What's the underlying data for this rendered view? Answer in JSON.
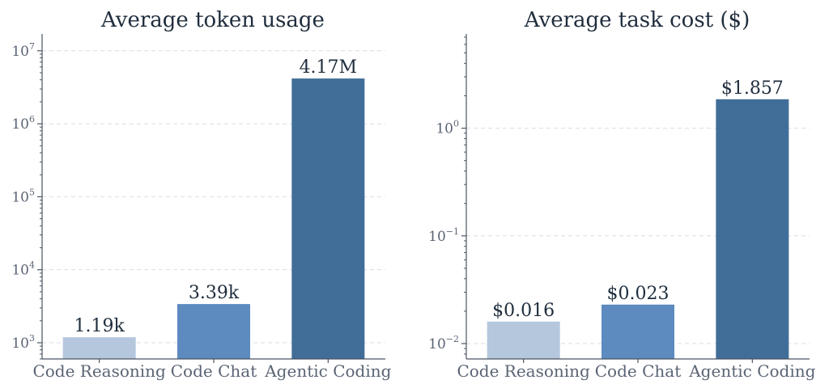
{
  "chart_data": [
    {
      "type": "bar",
      "title": "Average token usage",
      "xlabel": "",
      "ylabel": "",
      "yscale": "log",
      "ylim": [
        600,
        17000000
      ],
      "grid": true,
      "categories": [
        "Code Reasoning",
        "Code Chat",
        "Agentic Coding"
      ],
      "values": [
        1190,
        3390,
        4170000
      ],
      "value_labels": [
        "1.19k",
        "3.39k",
        "4.17M"
      ],
      "colors": [
        "#b4c7dc",
        "#5d8bbf",
        "#406e98"
      ],
      "yticks": [
        {
          "value": 1000,
          "base": "10",
          "exp": "3"
        },
        {
          "value": 10000,
          "base": "10",
          "exp": "4"
        },
        {
          "value": 100000,
          "base": "10",
          "exp": "5"
        },
        {
          "value": 1000000,
          "base": "10",
          "exp": "6"
        },
        {
          "value": 10000000,
          "base": "10",
          "exp": "7"
        }
      ]
    },
    {
      "type": "bar",
      "title": "Average task cost ($)",
      "xlabel": "",
      "ylabel": "",
      "yscale": "log",
      "ylim": [
        0.0072,
        7.5
      ],
      "grid": true,
      "categories": [
        "Code Reasoning",
        "Code Chat",
        "Agentic Coding"
      ],
      "values": [
        0.016,
        0.023,
        1.857
      ],
      "value_labels": [
        "$0.016",
        "$0.023",
        "$1.857"
      ],
      "colors": [
        "#b4c7dc",
        "#5d8bbf",
        "#406e98"
      ],
      "yticks": [
        {
          "value": 0.01,
          "base": "10",
          "exp": "−2"
        },
        {
          "value": 0.1,
          "base": "10",
          "exp": "−1"
        },
        {
          "value": 1,
          "base": "10",
          "exp": "0"
        }
      ]
    }
  ]
}
